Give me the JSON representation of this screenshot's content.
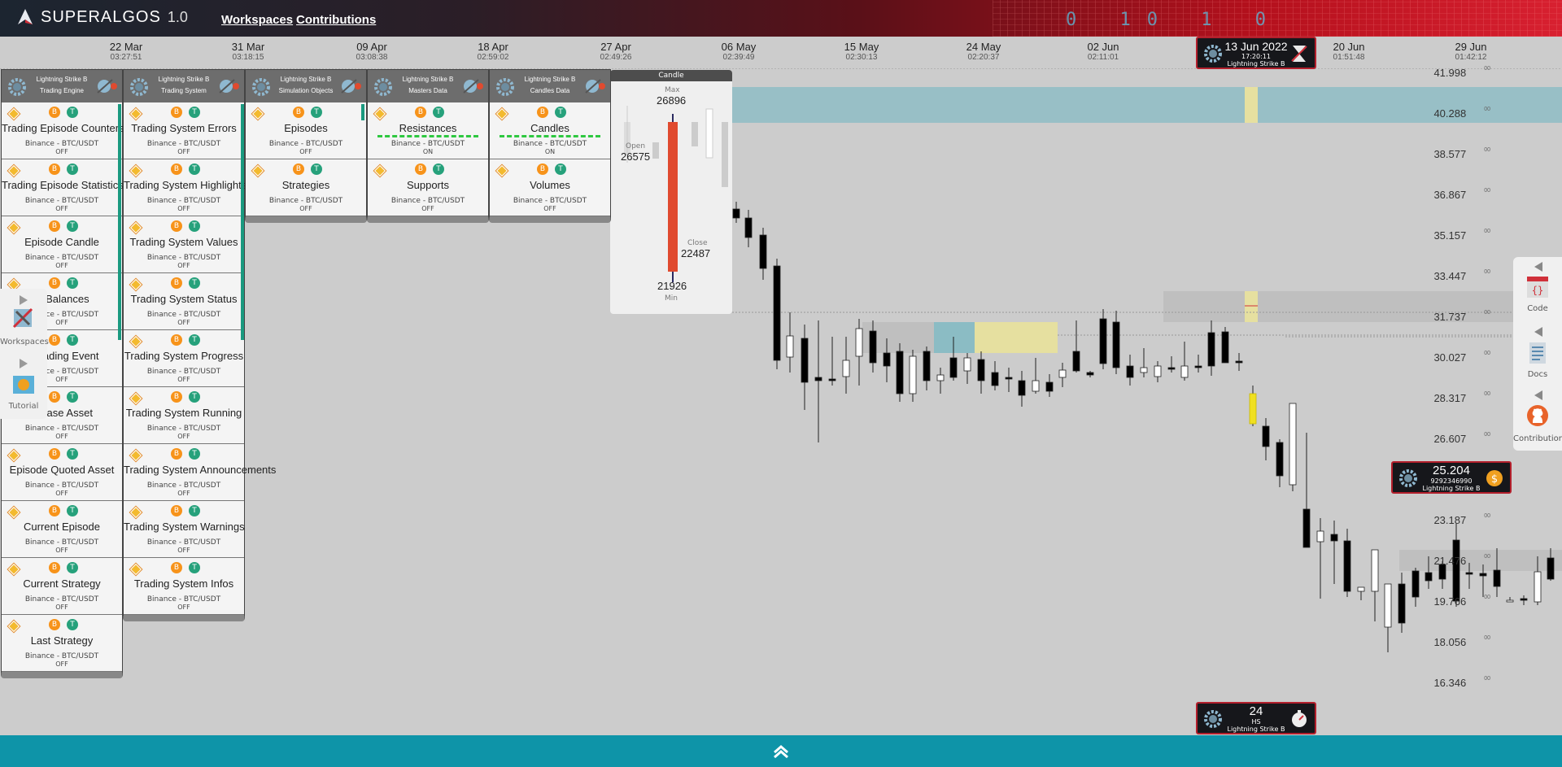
{
  "brand": {
    "name": "SUPERALGOS",
    "version": "1.0"
  },
  "nav": {
    "workspaces": "Workspaces",
    "contributions": "Contributions"
  },
  "header_binary": "0 10 1 0",
  "timeline": [
    {
      "d": "22 Mar",
      "t": "03:27:51"
    },
    {
      "d": "31 Mar",
      "t": "03:18:15"
    },
    {
      "d": "09 Apr",
      "t": "03:08:38"
    },
    {
      "d": "18 Apr",
      "t": "02:59:02"
    },
    {
      "d": "27 Apr",
      "t": "02:49:26"
    },
    {
      "d": "06 May",
      "t": "02:39:49"
    },
    {
      "d": "15 May",
      "t": "02:30:13"
    },
    {
      "d": "24 May",
      "t": "02:20:37"
    },
    {
      "d": "02 Jun",
      "t": "02:11:01"
    },
    {
      "d": "20 Jun",
      "t": "01:51:48"
    },
    {
      "d": "29 Jun",
      "t": "01:42:12"
    }
  ],
  "date_badge": {
    "date": "13 Jun 2022",
    "time": "17:20:11",
    "bot": "Lightning Strike B"
  },
  "price_badge": {
    "price": "25.204",
    "detail": "9292346990",
    "bot": "Lightning Strike B"
  },
  "tf_badge": {
    "value": "24",
    "unit": "HS",
    "bot": "Lightning Strike B"
  },
  "price_axis": [
    "41.998",
    "40.288",
    "38.577",
    "36.867",
    "35.157",
    "33.447",
    "31.737",
    "30.027",
    "28.317",
    "26.607",
    "23.187",
    "21.476",
    "19.766",
    "18.056",
    "16.346"
  ],
  "price_suffix": "00",
  "candle_popup": {
    "title": "Candle",
    "max_label": "Max",
    "max": "26896",
    "open_label": "Open",
    "open": "26575",
    "close_label": "Close",
    "close": "22487",
    "min_label": "Min",
    "min": "21926"
  },
  "panels": [
    {
      "header": [
        "Lightning Strike B",
        "Trading Engine"
      ],
      "items": [
        {
          "title": "Trading Episode Counters",
          "ex": "Binance - BTC/USDT",
          "st": "OFF"
        },
        {
          "title": "Trading Episode Statistics",
          "ex": "Binance - BTC/USDT",
          "st": "OFF"
        },
        {
          "title": "Episode Candle",
          "ex": "Binance - BTC/USDT",
          "st": "OFF"
        },
        {
          "title": "le Balances",
          "ex": "Binance - BTC/USDT",
          "st": "OFF"
        },
        {
          "title": "o Trading Event",
          "ex": "Binance - BTC/USDT",
          "st": "OFF"
        },
        {
          "title": "e Base Asset",
          "ex": "Binance - BTC/USDT",
          "st": "OFF"
        },
        {
          "title": "Episode Quoted Asset",
          "ex": "Binance - BTC/USDT",
          "st": "OFF"
        },
        {
          "title": "Current Episode",
          "ex": "Binance - BTC/USDT",
          "st": "OFF"
        },
        {
          "title": "Current Strategy",
          "ex": "Binance - BTC/USDT",
          "st": "OFF"
        },
        {
          "title": "Last Strategy",
          "ex": "Binance - BTC/USDT",
          "st": "OFF"
        }
      ]
    },
    {
      "header": [
        "Lightning Strike B",
        "Trading System"
      ],
      "items": [
        {
          "title": "Trading System Errors",
          "ex": "Binance - BTC/USDT",
          "st": "OFF"
        },
        {
          "title": "Trading System Highlights",
          "ex": "Binance - BTC/USDT",
          "st": "OFF"
        },
        {
          "title": "Trading System Values",
          "ex": "Binance - BTC/USDT",
          "st": "OFF"
        },
        {
          "title": "Trading System Status",
          "ex": "Binance - BTC/USDT",
          "st": "OFF"
        },
        {
          "title": "Trading System Progress",
          "ex": "Binance - BTC/USDT",
          "st": "OFF"
        },
        {
          "title": "Trading System Running",
          "ex": "Binance - BTC/USDT",
          "st": "OFF"
        },
        {
          "title": "Trading System Announcements",
          "ex": "Binance - BTC/USDT",
          "st": "OFF"
        },
        {
          "title": "Trading System Warnings",
          "ex": "Binance - BTC/USDT",
          "st": "OFF"
        },
        {
          "title": "Trading System Infos",
          "ex": "Binance - BTC/USDT",
          "st": "OFF"
        }
      ]
    },
    {
      "header": [
        "Lightning Strike B",
        "Simulation Objects"
      ],
      "items": [
        {
          "title": "Episodes",
          "ex": "Binance - BTC/USDT",
          "st": "OFF"
        },
        {
          "title": "Strategies",
          "ex": "Binance - BTC/USDT",
          "st": "OFF"
        }
      ]
    },
    {
      "header": [
        "Lightning Strike B",
        "Masters Data"
      ],
      "items": [
        {
          "title": "Resistances",
          "ex": "Binance - BTC/USDT",
          "st": "ON"
        },
        {
          "title": "Supports",
          "ex": "Binance - BTC/USDT",
          "st": "OFF"
        }
      ]
    },
    {
      "header": [
        "Lightning Strike B",
        "Candles Data"
      ],
      "items": [
        {
          "title": "Candles",
          "ex": "Binance - BTC/USDT",
          "st": "ON"
        },
        {
          "title": "Volumes",
          "ex": "Binance - BTC/USDT",
          "st": "OFF"
        }
      ]
    }
  ],
  "left_dock": {
    "workspaces": "Workspaces",
    "tutorial": "Tutorial"
  },
  "right_dock": {
    "code": "Code",
    "docs": "Docs",
    "contributions": "Contributions"
  },
  "colors": {
    "accent": "#0e94a8",
    "brand_red": "#b31f2c",
    "bull": "#ffffff",
    "bear": "#000000",
    "highlight": "#f0e020"
  },
  "icons": [
    "gear-icon",
    "binance-icon",
    "btc-icon",
    "usdt-icon",
    "chevron-up-icon",
    "play-icon",
    "code-icon",
    "docs-icon",
    "github-icon"
  ]
}
